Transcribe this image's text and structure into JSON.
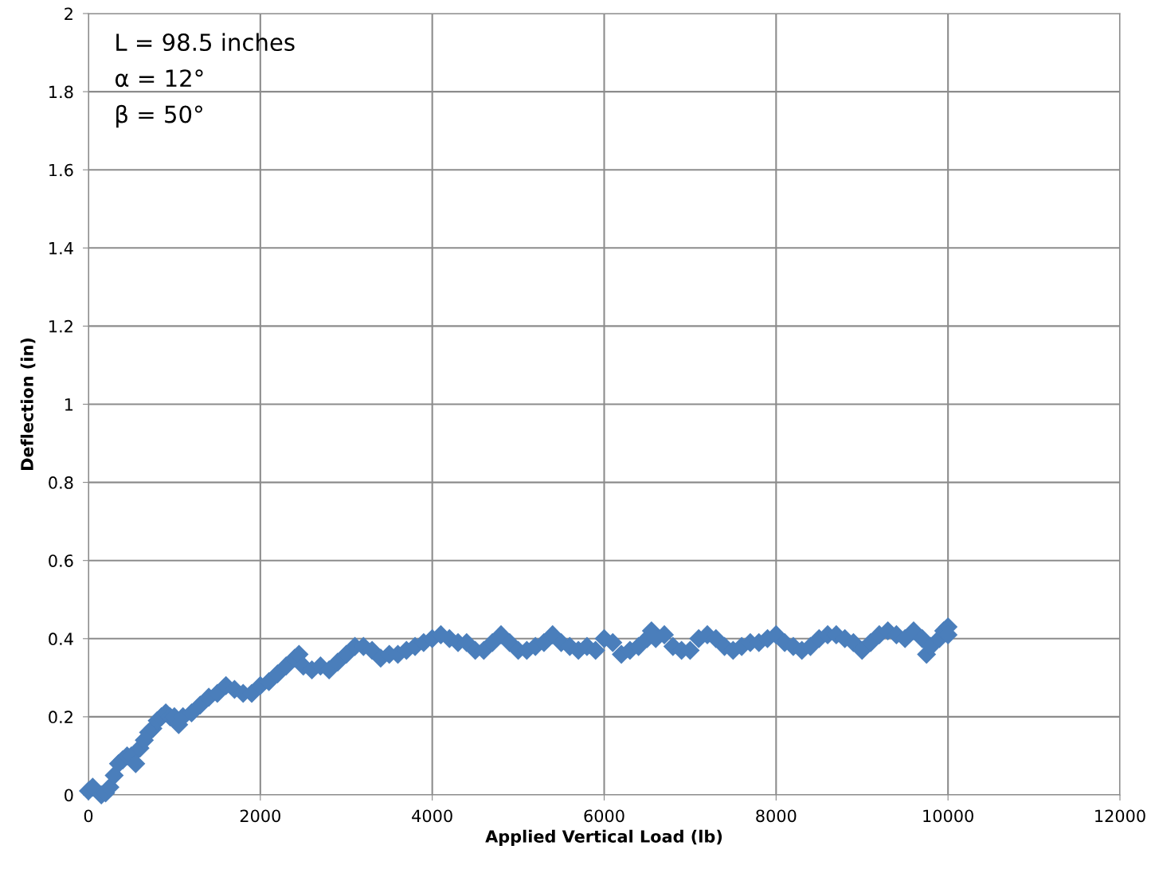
{
  "chart_data": {
    "type": "scatter",
    "xlabel": "Applied Vertical Load (lb)",
    "ylabel": "Deflection (in)",
    "annotations": [
      "L = 98.5 inches",
      "α = 12°",
      "β = 50°"
    ],
    "xlim": [
      0,
      12000
    ],
    "xticks": [
      0,
      2000,
      4000,
      6000,
      8000,
      10000,
      12000
    ],
    "ylim": [
      0,
      2
    ],
    "yticks": [
      0,
      0.2,
      0.4,
      0.6,
      0.8,
      1,
      1.2,
      1.4,
      1.6,
      1.8,
      2
    ],
    "grid": true,
    "marker": "diamond",
    "legend": false,
    "series": [
      {
        "color": "#4a7ebb",
        "x": [
          0,
          50,
          150,
          200,
          250,
          300,
          350,
          400,
          450,
          500,
          550,
          600,
          650,
          700,
          750,
          800,
          850,
          900,
          950,
          1000,
          1050,
          1100,
          1200,
          1300,
          1400,
          1500,
          1600,
          1700,
          1800,
          1900,
          2000,
          2100,
          2200,
          2300,
          2400,
          2450,
          2500,
          2600,
          2700,
          2800,
          2900,
          3000,
          3100,
          3200,
          3300,
          3400,
          3500,
          3600,
          3700,
          3800,
          3900,
          4000,
          4100,
          4200,
          4300,
          4400,
          4500,
          4600,
          4700,
          4800,
          4900,
          5000,
          5100,
          5200,
          5300,
          5400,
          5500,
          5600,
          5700,
          5800,
          5900,
          6000,
          6100,
          6200,
          6300,
          6400,
          6500,
          6550,
          6600,
          6700,
          6800,
          6900,
          7000,
          7100,
          7200,
          7300,
          7400,
          7500,
          7600,
          7700,
          7800,
          7900,
          8000,
          8100,
          8200,
          8300,
          8400,
          8500,
          8600,
          8700,
          8800,
          8900,
          9000,
          9100,
          9200,
          9300,
          9400,
          9500,
          9600,
          9700,
          9750,
          9800,
          9900,
          9950,
          10000,
          10000
        ],
        "values": [
          0.01,
          0.02,
          0.0,
          0.005,
          0.02,
          0.05,
          0.08,
          0.09,
          0.1,
          0.1,
          0.08,
          0.12,
          0.14,
          0.16,
          0.17,
          0.19,
          0.2,
          0.21,
          0.2,
          0.2,
          0.18,
          0.2,
          0.21,
          0.23,
          0.25,
          0.26,
          0.28,
          0.27,
          0.26,
          0.26,
          0.28,
          0.29,
          0.31,
          0.33,
          0.35,
          0.36,
          0.33,
          0.32,
          0.33,
          0.32,
          0.34,
          0.36,
          0.38,
          0.38,
          0.37,
          0.35,
          0.36,
          0.36,
          0.37,
          0.38,
          0.39,
          0.4,
          0.41,
          0.4,
          0.39,
          0.39,
          0.37,
          0.37,
          0.39,
          0.41,
          0.39,
          0.37,
          0.37,
          0.38,
          0.39,
          0.41,
          0.39,
          0.38,
          0.37,
          0.38,
          0.37,
          0.4,
          0.39,
          0.36,
          0.37,
          0.38,
          0.4,
          0.42,
          0.4,
          0.41,
          0.38,
          0.37,
          0.37,
          0.4,
          0.41,
          0.4,
          0.38,
          0.37,
          0.38,
          0.39,
          0.39,
          0.4,
          0.41,
          0.39,
          0.38,
          0.37,
          0.38,
          0.4,
          0.41,
          0.41,
          0.4,
          0.39,
          0.37,
          0.39,
          0.41,
          0.42,
          0.41,
          0.4,
          0.42,
          0.4,
          0.36,
          0.38,
          0.4,
          0.42,
          0.43,
          0.41
        ]
      }
    ]
  }
}
